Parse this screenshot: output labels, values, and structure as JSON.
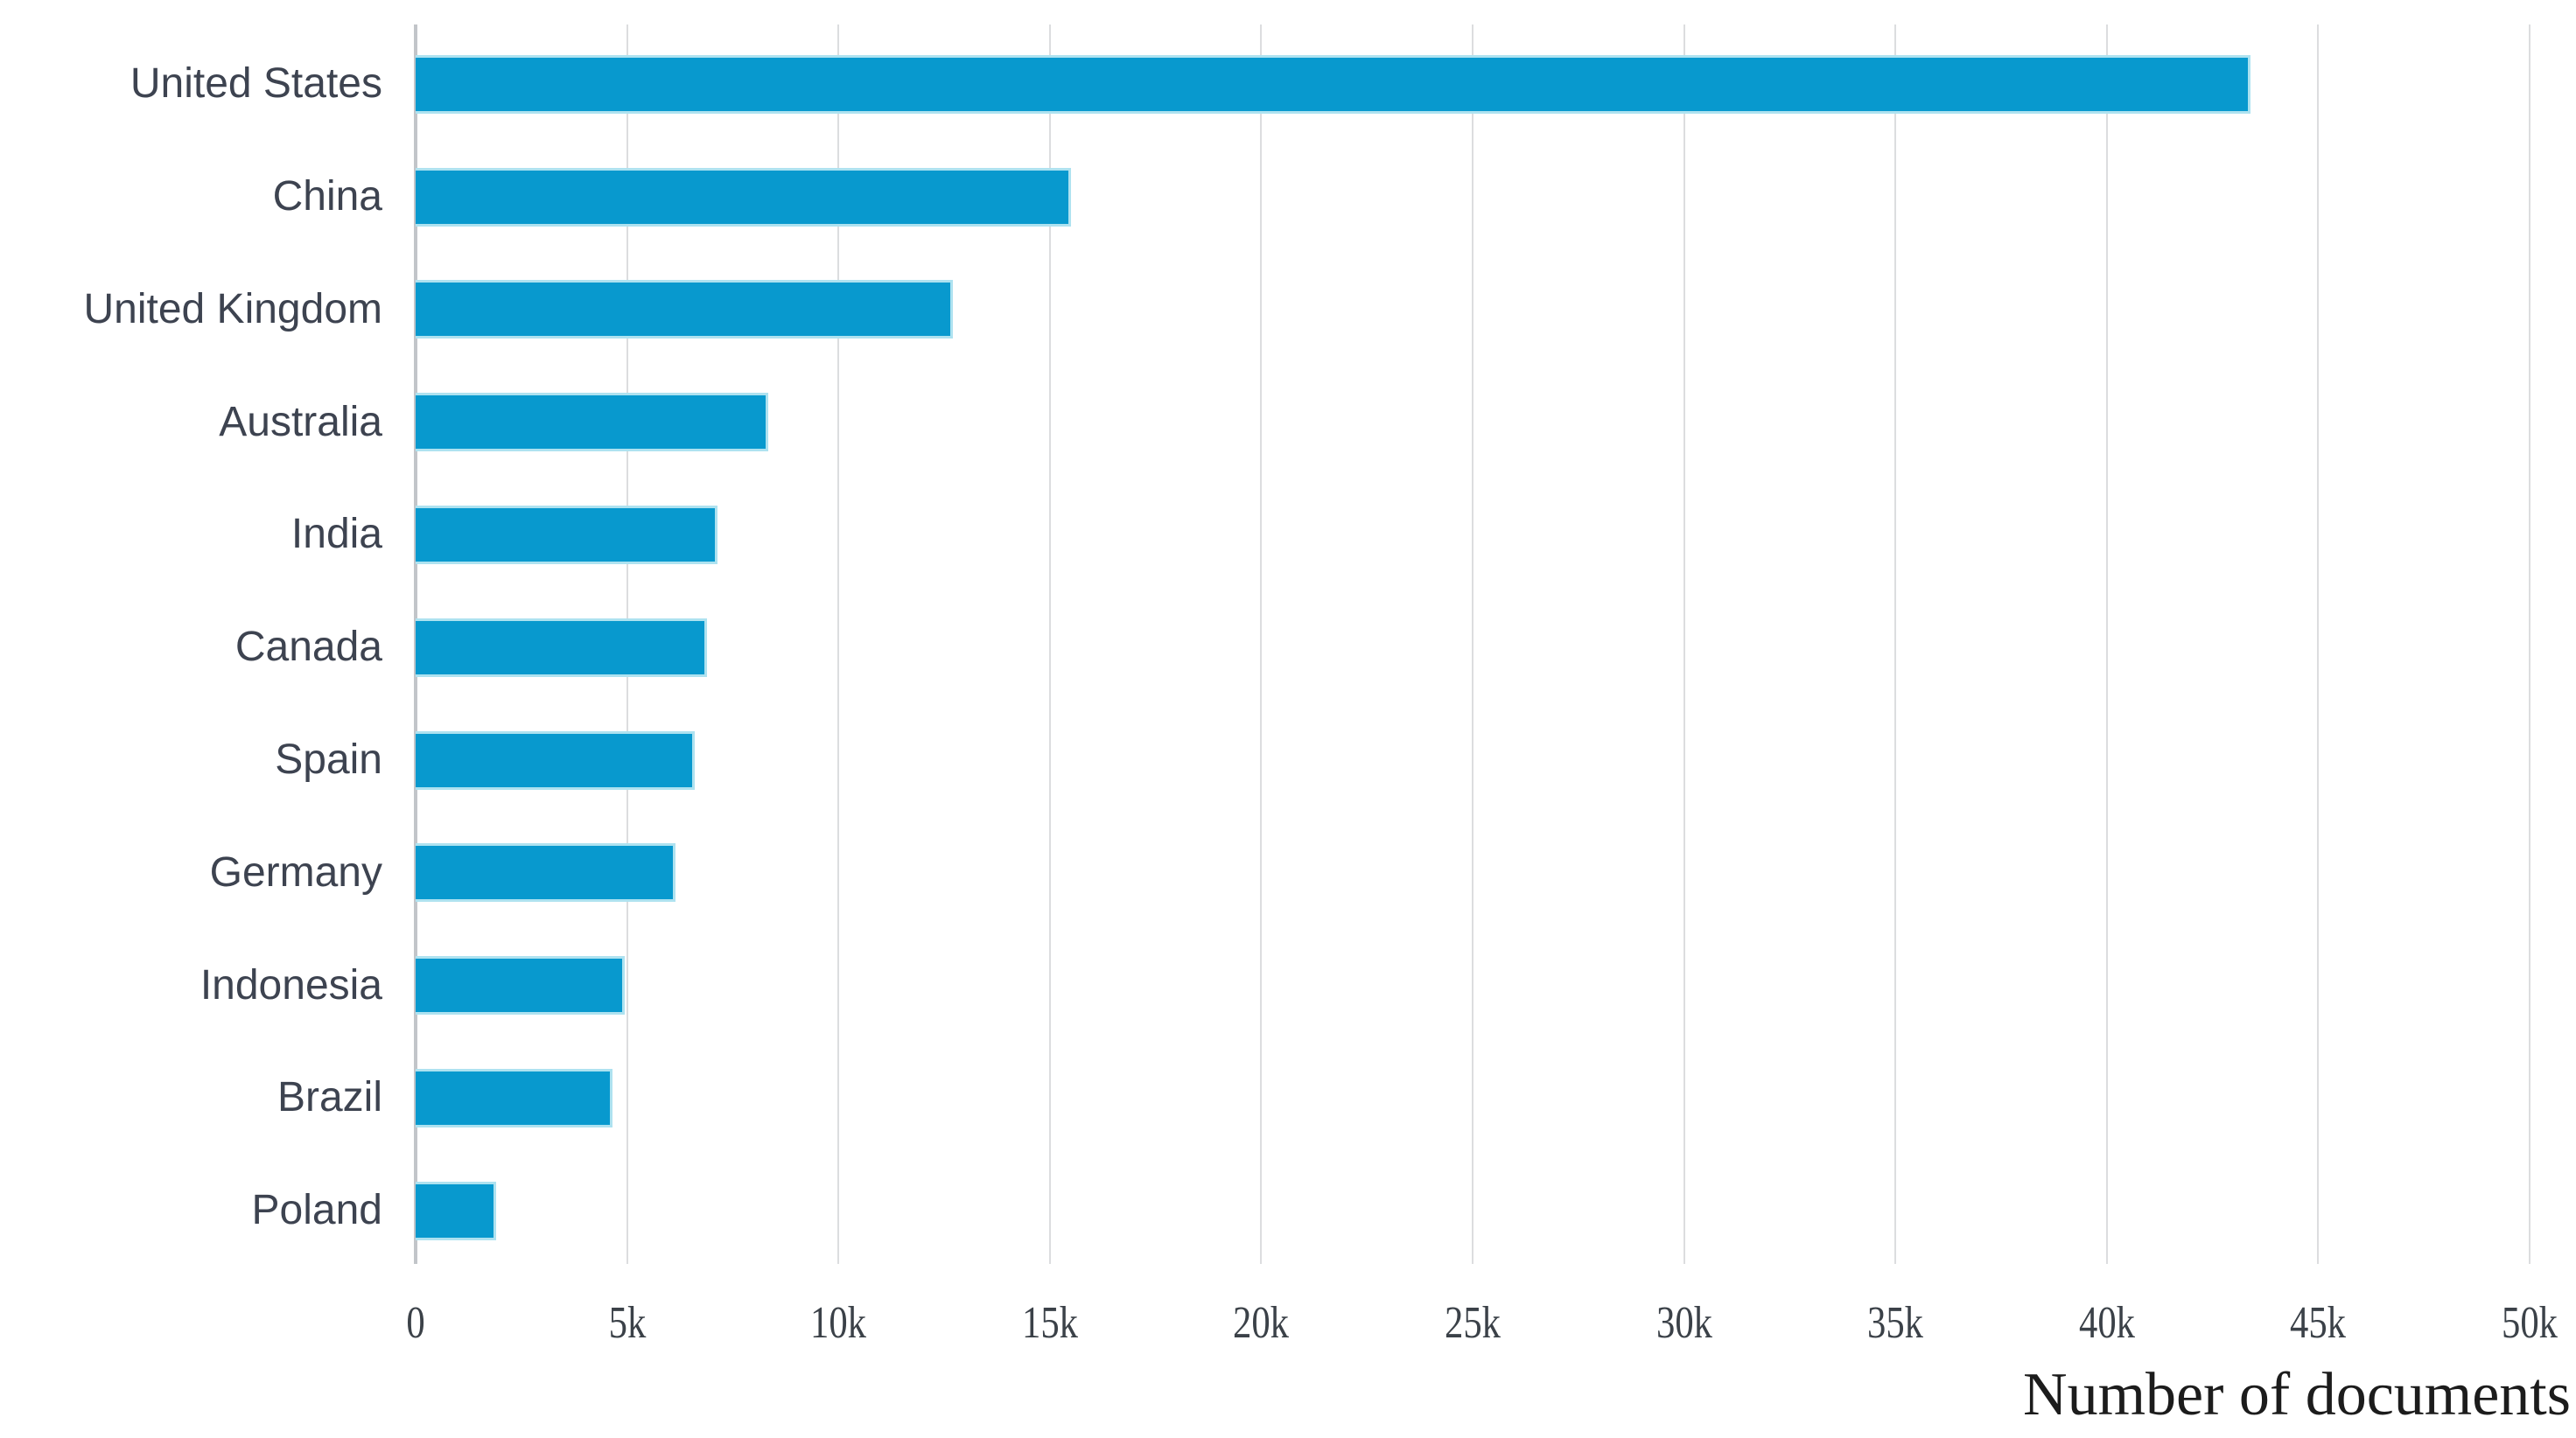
{
  "chart_data": {
    "type": "bar",
    "orientation": "horizontal",
    "title": "",
    "xlabel": "Number of documents",
    "ylabel": "",
    "categories": [
      "United States",
      "China",
      "United Kingdom",
      "Australia",
      "India",
      "Canada",
      "Spain",
      "Germany",
      "Indonesia",
      "Brazil",
      "Poland"
    ],
    "values": [
      43400,
      15500,
      12700,
      8350,
      7150,
      6900,
      6600,
      6150,
      4950,
      4650,
      1900
    ],
    "x_ticks": [
      "0",
      "5k",
      "10k",
      "15k",
      "20k",
      "25k",
      "30k",
      "35k",
      "40k",
      "45k",
      "50k"
    ],
    "xlim": [
      0,
      50000
    ],
    "grid": "vertical-gridlines-behind-bars",
    "legend": "none",
    "colors": {
      "bar_fill": "#0899ce",
      "bar_edge": "#aee2f0",
      "gridline": "#dcdddf",
      "axis_line": "#c2c5c9",
      "category_label_text": "#3d4350",
      "tick_label_text": "#3b4148",
      "axis_title_text": "#1c1c1c",
      "background": "#ffffff"
    }
  }
}
